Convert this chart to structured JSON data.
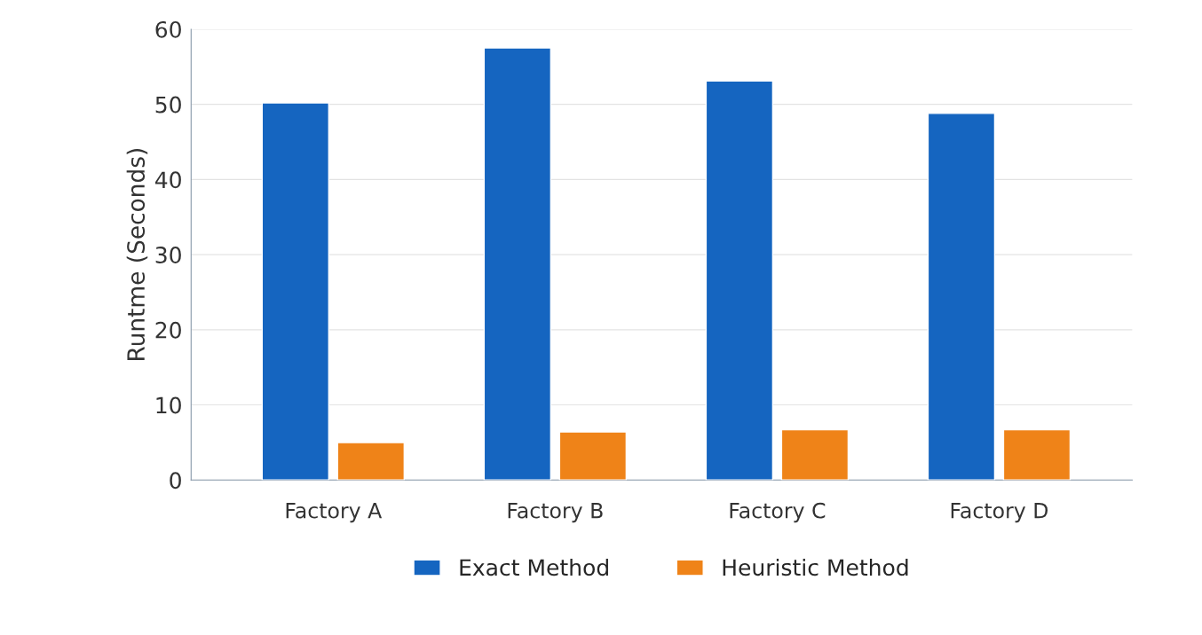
{
  "chart_data": {
    "type": "bar",
    "ylabel": "Runtme (Seconds)",
    "categories": [
      "Factory A",
      "Factory B",
      "Factory C",
      "Factory D"
    ],
    "series": [
      {
        "name": "Exact Method",
        "color": "#1565c0",
        "values": [
          50.2,
          57.5,
          53.1,
          48.8
        ]
      },
      {
        "name": "Heuristic Method",
        "color": "#ef8318",
        "values": [
          5.0,
          6.4,
          6.7,
          6.7
        ]
      }
    ],
    "ylim": [
      0,
      60
    ],
    "yticks": [
      0,
      10,
      20,
      30,
      40,
      50,
      60
    ],
    "grid": "y",
    "legend": "bottom"
  }
}
